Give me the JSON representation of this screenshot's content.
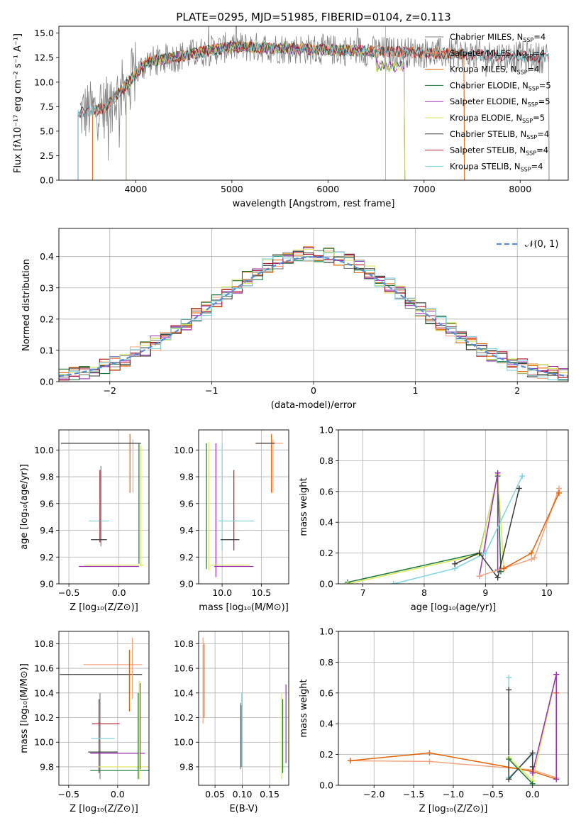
{
  "chart_data": [
    {
      "type": "line",
      "title": "PLATE=0295, MJD=51985, FIBERID=0104, z=0.113",
      "xlabel": "wavelength [Angstrom, rest frame]",
      "ylabel": "Flux [fλ10⁻¹⁷ erg cm⁻² s⁻¹ A⁻¹]",
      "xlim": [
        3200,
        8500
      ],
      "ylim": [
        0,
        15.7
      ],
      "xticks": [
        4000,
        5000,
        6000,
        7000,
        8000
      ],
      "yticks": [
        0.0,
        2.5,
        5.0,
        7.5,
        10.0,
        12.5,
        15.0
      ],
      "grid": false,
      "legend_position": "top-right",
      "data_spectrum_color": "#808080",
      "series": [
        {
          "name": "Chabrier MILES, N",
          "sub": "SSP",
          "suffix": "=4",
          "color": "#808080",
          "x_range": [
            3550,
            7420
          ]
        },
        {
          "name": "Salpeter MILES, N",
          "sub": "SSP",
          "suffix": "=4",
          "color": "#f4a582",
          "x_range": [
            3550,
            7420
          ]
        },
        {
          "name": "Kroupa MILES, N",
          "sub": "SSP",
          "suffix": "=4",
          "color": "#e66101",
          "x_range": [
            3550,
            7420
          ]
        },
        {
          "name": "Chabrier ELODIE, N",
          "sub": "SSP",
          "suffix": "=5",
          "color": "#1b7837",
          "x_range": [
            3900,
            6800
          ]
        },
        {
          "name": "Salpeter ELODIE, N",
          "sub": "SSP",
          "suffix": "=5",
          "color": "#9b30b5",
          "x_range": [
            3900,
            6800
          ]
        },
        {
          "name": "Kroupa ELODIE, N",
          "sub": "SSP",
          "suffix": "=5",
          "color": "#d9e65a",
          "x_range": [
            3900,
            6800
          ]
        },
        {
          "name": "Chabrier STELIB, N",
          "sub": "SSP",
          "suffix": "=4",
          "color": "#3a3a3a",
          "x_range": [
            3400,
            8300
          ]
        },
        {
          "name": "Salpeter STELIB, N",
          "sub": "SSP",
          "suffix": "=4",
          "color": "#b2182b",
          "x_range": [
            3400,
            8300
          ]
        },
        {
          "name": "Kroupa STELIB, N",
          "sub": "SSP",
          "suffix": "=4",
          "color": "#7fd3de",
          "x_range": [
            3400,
            8300
          ]
        }
      ]
    },
    {
      "type": "line",
      "xlabel": "(data-model)/error",
      "ylabel": "Normed distribution",
      "xlim": [
        -2.5,
        2.5
      ],
      "ylim": [
        0,
        0.49
      ],
      "xticks": [
        -2,
        -1,
        0,
        1,
        2
      ],
      "yticks": [
        0.0,
        0.1,
        0.2,
        0.3,
        0.4
      ],
      "grid": true,
      "legend_position": "top-right",
      "reference": {
        "label": "𝒩(0, 1)",
        "color": "#5b8ad8"
      },
      "histogram_bins": {
        "start": -2.5,
        "width": 0.1,
        "count": 50
      }
    },
    {
      "type": "scatter",
      "xlabel": "Z [log₁₀(Z/Z⊙)]",
      "ylabel": "age  [log₁₀(age/yr)]",
      "xlim": [
        -0.6,
        0.3
      ],
      "ylim": [
        9.0,
        10.15
      ],
      "xticks": [
        -0.5,
        0.0
      ],
      "yticks": [
        9.0,
        9.2,
        9.4,
        9.6,
        9.8,
        10.0
      ],
      "grid": true,
      "errorbars": [
        {
          "color": "#808080",
          "x": -0.18,
          "xerr": 0.0,
          "y": 9.58,
          "yerr": 0.3
        },
        {
          "color": "#e66101",
          "x": 0.11,
          "xerr": 0.0,
          "y": 9.9,
          "yerr": 0.22
        },
        {
          "color": "#f4a582",
          "x": 0.14,
          "xerr": 0.0,
          "y": 9.88,
          "yerr": 0.2
        },
        {
          "color": "#3a3a3a",
          "x": -0.18,
          "xerr": 0.4,
          "y": 10.05,
          "yerr": 0.0
        },
        {
          "color": "#7fd3de",
          "x": -0.2,
          "xerr": 0.1,
          "y": 9.47,
          "yerr": 0.0
        },
        {
          "color": "#b2182b",
          "x": -0.19,
          "xerr": 0.0,
          "y": 9.58,
          "yerr": 0.27
        },
        {
          "color": "#9b30b5",
          "x": -0.1,
          "xerr": 0.3,
          "y": 9.13,
          "yerr": 0.0
        },
        {
          "color": "#d9e65a",
          "x": -0.05,
          "xerr": 0.3,
          "y": 9.14,
          "yerr": 0.0
        },
        {
          "color": "#1b7837",
          "x": 0.2,
          "xerr": 0.0,
          "y": 9.6,
          "yerr": 0.45
        },
        {
          "color": "#3a3a3a",
          "x": -0.2,
          "xerr": 0.08,
          "y": 9.33,
          "yerr": 0.0
        },
        {
          "color": "#d9e65a",
          "x": 0.22,
          "xerr": 0.0,
          "y": 9.58,
          "yerr": 0.45
        }
      ]
    },
    {
      "type": "scatter",
      "xlabel": "mass [log₁₀(M/M⊙)]",
      "ylabel": "",
      "xlim": [
        9.7,
        10.85
      ],
      "ylim": [
        9.0,
        10.15
      ],
      "xticks": [
        10.0,
        10.5
      ],
      "yticks": [
        9.0,
        9.2,
        9.4,
        9.6,
        9.8,
        10.0
      ],
      "grid": true,
      "errorbars": [
        {
          "color": "#9b30b5",
          "x": 9.92,
          "xerr": 0.0,
          "y": 9.55,
          "yerr": 0.5
        },
        {
          "color": "#d9e65a",
          "x": 9.83,
          "xerr": 0.0,
          "y": 9.58,
          "yerr": 0.48
        },
        {
          "color": "#1b7837",
          "x": 9.8,
          "xerr": 0.0,
          "y": 9.58,
          "yerr": 0.47
        },
        {
          "color": "#7fd3de",
          "x": 10.0,
          "xerr": 0.0,
          "y": 9.65,
          "yerr": 0.4
        },
        {
          "color": "#b2182b",
          "x": 10.15,
          "xerr": 0.0,
          "y": 9.55,
          "yerr": 0.3
        },
        {
          "color": "#7fd3de",
          "x": 10.18,
          "xerr": 0.23,
          "y": 9.47,
          "yerr": 0.0
        },
        {
          "color": "#3a3a3a",
          "x": 10.1,
          "xerr": 0.12,
          "y": 9.33,
          "yerr": 0.0
        },
        {
          "color": "#9b30b5",
          "x": 10.15,
          "xerr": 0.25,
          "y": 9.13,
          "yerr": 0.0
        },
        {
          "color": "#d9e65a",
          "x": 10.1,
          "xerr": 0.25,
          "y": 9.14,
          "yerr": 0.0
        },
        {
          "color": "#e66101",
          "x": 10.63,
          "xerr": 0.0,
          "y": 9.9,
          "yerr": 0.22
        },
        {
          "color": "#f4a582",
          "x": 10.65,
          "xerr": 0.0,
          "y": 9.88,
          "yerr": 0.2
        },
        {
          "color": "#f4a582",
          "x": 10.6,
          "xerr": 0.18,
          "y": 10.05,
          "yerr": 0.0
        },
        {
          "color": "#3a3a3a",
          "x": 10.55,
          "xerr": 0.12,
          "y": 10.05,
          "yerr": 0.0
        }
      ]
    },
    {
      "type": "line",
      "xlabel": "age  [log₁₀(age/yr)]",
      "ylabel": "mass weight",
      "xlim": [
        6.6,
        10.35
      ],
      "ylim": [
        0,
        1.0
      ],
      "xticks": [
        7,
        8,
        9,
        10
      ],
      "yticks": [
        0.0,
        0.2,
        0.4,
        0.6,
        0.8,
        1.0
      ],
      "grid": true,
      "series": [
        {
          "color": "#1b7837",
          "x": [
            6.75,
            8.9,
            9.2,
            9.25
          ],
          "y": [
            0.01,
            0.2,
            0.7,
            0.08
          ]
        },
        {
          "color": "#d9e65a",
          "x": [
            6.75,
            8.9,
            9.2,
            9.3
          ],
          "y": [
            0.0,
            0.19,
            0.71,
            0.1
          ]
        },
        {
          "color": "#9b30b5",
          "x": [
            8.9,
            9.2,
            9.2,
            9.3
          ],
          "y": [
            0.05,
            0.72,
            0.09,
            0.1
          ]
        },
        {
          "color": "#7fd3de",
          "x": [
            7.5,
            8.5,
            9.0,
            9.6
          ],
          "y": [
            0.0,
            0.1,
            0.2,
            0.7
          ]
        },
        {
          "color": "#3a3a3a",
          "x": [
            8.5,
            8.9,
            9.2,
            9.55
          ],
          "y": [
            0.13,
            0.2,
            0.04,
            0.62
          ]
        },
        {
          "color": "#f4a582",
          "x": [
            8.9,
            9.75,
            9.8,
            10.2
          ],
          "y": [
            0.05,
            0.16,
            0.17,
            0.62
          ]
        },
        {
          "color": "#e66101",
          "x": [
            9.3,
            9.75,
            10.2
          ],
          "y": [
            0.1,
            0.2,
            0.59
          ]
        }
      ]
    },
    {
      "type": "scatter",
      "xlabel": "Z [log₁₀(Z/Z⊙)]",
      "ylabel": "mass [log₁₀(M/M⊙)]",
      "xlim": [
        -0.6,
        0.32
      ],
      "ylim": [
        9.65,
        10.9
      ],
      "xticks": [
        -0.5,
        0.0
      ],
      "yticks": [
        9.8,
        10.0,
        10.2,
        10.4,
        10.6,
        10.8
      ],
      "grid": true,
      "errorbars": [
        {
          "color": "#808080",
          "x": -0.18,
          "xerr": 0.0,
          "y": 10.05,
          "yerr": 0.35
        },
        {
          "color": "#b2182b",
          "x": -0.19,
          "xerr": 0.0,
          "y": 10.05,
          "yerr": 0.3
        },
        {
          "color": "#3a3a3a",
          "x": -0.17,
          "xerr": 0.42,
          "y": 10.55,
          "yerr": 0.0
        },
        {
          "color": "#f4a582",
          "x": -0.05,
          "xerr": 0.3,
          "y": 10.63,
          "yerr": 0.0
        },
        {
          "color": "#e66101",
          "x": 0.12,
          "xerr": 0.0,
          "y": 10.5,
          "yerr": 0.25
        },
        {
          "color": "#f4a582",
          "x": 0.15,
          "xerr": 0.0,
          "y": 10.6,
          "yerr": 0.25
        },
        {
          "color": "#b2182b",
          "x": -0.12,
          "xerr": 0.14,
          "y": 10.15,
          "yerr": 0.0
        },
        {
          "color": "#7fd3de",
          "x": -0.15,
          "xerr": 0.12,
          "y": 10.03,
          "yerr": 0.0
        },
        {
          "color": "#3a3a3a",
          "x": -0.15,
          "xerr": 0.15,
          "y": 9.92,
          "yerr": 0.0
        },
        {
          "color": "#9b30b5",
          "x": 0.0,
          "xerr": 0.28,
          "y": 9.91,
          "yerr": 0.0
        },
        {
          "color": "#d9e65a",
          "x": 0.05,
          "xerr": 0.25,
          "y": 9.8,
          "yerr": 0.0
        },
        {
          "color": "#1b7837",
          "x": 0.04,
          "xerr": 0.32,
          "y": 9.77,
          "yerr": 0.0
        },
        {
          "color": "#9b30b5",
          "x": 0.23,
          "xerr": 0.0,
          "y": 10.13,
          "yerr": 0.35
        },
        {
          "color": "#d9e65a",
          "x": 0.22,
          "xerr": 0.0,
          "y": 10.1,
          "yerr": 0.4
        },
        {
          "color": "#1b7837",
          "x": 0.21,
          "xerr": 0.0,
          "y": 10.05,
          "yerr": 0.35
        }
      ]
    },
    {
      "type": "scatter",
      "xlabel": "E(B-V)",
      "ylabel": "",
      "xlim": [
        0.02,
        0.185
      ],
      "ylim": [
        9.65,
        10.9
      ],
      "xticks": [
        0.05,
        0.1,
        0.15
      ],
      "yticks": [
        9.8,
        10.0,
        10.2,
        10.4,
        10.6,
        10.8
      ],
      "grid": true,
      "errorbars": [
        {
          "color": "#f4a582",
          "x": 0.028,
          "xerr": 0.0,
          "y": 10.5,
          "yerr": 0.35
        },
        {
          "color": "#e66101",
          "x": 0.03,
          "xerr": 0.0,
          "y": 10.5,
          "yerr": 0.3
        },
        {
          "color": "#808080",
          "x": 0.097,
          "xerr": 0.0,
          "y": 10.05,
          "yerr": 0.27
        },
        {
          "color": "#3a3a3a",
          "x": 0.098,
          "xerr": 0.0,
          "y": 10.05,
          "yerr": 0.25
        },
        {
          "color": "#7fd3de",
          "x": 0.099,
          "xerr": 0.0,
          "y": 10.1,
          "yerr": 0.3
        },
        {
          "color": "#d9e65a",
          "x": 0.172,
          "xerr": 0.0,
          "y": 10.05,
          "yerr": 0.35
        },
        {
          "color": "#1b7837",
          "x": 0.174,
          "xerr": 0.0,
          "y": 10.05,
          "yerr": 0.3
        },
        {
          "color": "#9b30b5",
          "x": 0.18,
          "xerr": 0.0,
          "y": 10.15,
          "yerr": 0.32
        }
      ]
    },
    {
      "type": "line",
      "xlabel": "Z [log₁₀(Z/Z⊙)]",
      "ylabel": "mass weight",
      "xlim": [
        -2.45,
        0.45
      ],
      "ylim": [
        0,
        1.0
      ],
      "xticks": [
        -2.0,
        -1.5,
        -1.0,
        -0.5,
        0.0
      ],
      "yticks": [
        0.0,
        0.2,
        0.4,
        0.6,
        0.8,
        1.0
      ],
      "grid": true,
      "series": [
        {
          "color": "#f4a582",
          "x": [
            -2.3,
            -1.3,
            0.0,
            0.3
          ],
          "y": [
            0.16,
            0.155,
            0.1,
            0.05
          ]
        },
        {
          "color": "#e66101",
          "x": [
            -2.3,
            -1.3,
            0.0,
            0.3,
            0.3
          ],
          "y": [
            0.16,
            0.21,
            0.09,
            0.04,
            0.6
          ]
        },
        {
          "color": "#7fd3de",
          "x": [
            -0.3,
            -0.3,
            0.0
          ],
          "y": [
            0.7,
            0.05,
            0.2
          ]
        },
        {
          "color": "#3a3a3a",
          "x": [
            -0.3,
            -0.3,
            0.0,
            0.0
          ],
          "y": [
            0.62,
            0.04,
            0.21,
            0.12
          ]
        },
        {
          "color": "#d9e65a",
          "x": [
            -0.3,
            0.0,
            0.3
          ],
          "y": [
            0.18,
            0.03,
            0.72
          ]
        },
        {
          "color": "#9b30b5",
          "x": [
            0.0,
            0.3,
            0.3
          ],
          "y": [
            0.08,
            0.72,
            0.04
          ]
        },
        {
          "color": "#1b7837",
          "x": [
            -0.3,
            0.0
          ],
          "y": [
            0.17,
            0.01
          ]
        }
      ]
    }
  ]
}
